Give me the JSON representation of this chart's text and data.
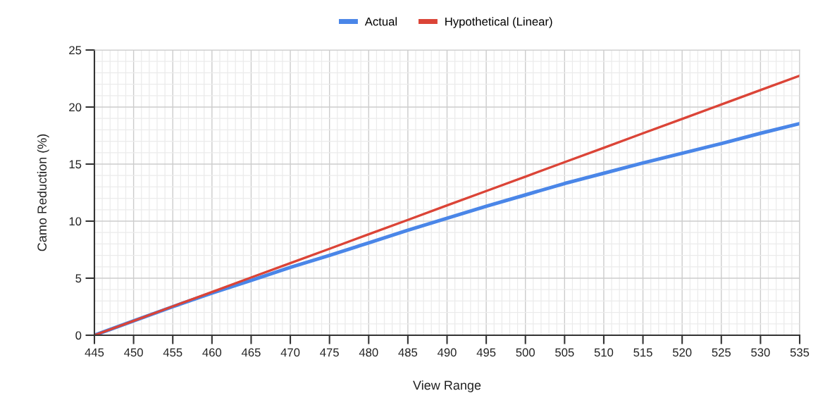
{
  "chart_data": {
    "type": "line",
    "xlabel": "View Range",
    "ylabel": "Camo Reduction (%)",
    "x": [
      445,
      450,
      455,
      460,
      465,
      470,
      475,
      480,
      485,
      490,
      495,
      500,
      505,
      510,
      515,
      520,
      525,
      530,
      535
    ],
    "series": [
      {
        "name": "Actual",
        "color": "#4a86e8",
        "values": [
          0,
          1.26,
          2.5,
          3.7,
          4.8,
          5.95,
          7.0,
          8.1,
          9.2,
          10.25,
          11.3,
          12.3,
          13.3,
          14.2,
          15.1,
          15.95,
          16.8,
          17.7,
          18.55
        ]
      },
      {
        "name": "Hypothetical (Linear)",
        "color": "#db4437",
        "values": [
          0,
          1.26,
          2.53,
          3.79,
          5.06,
          6.32,
          7.58,
          8.85,
          10.11,
          11.38,
          12.64,
          13.9,
          15.17,
          16.43,
          17.7,
          18.96,
          20.22,
          21.49,
          22.75
        ]
      }
    ],
    "xlim": [
      445,
      535
    ],
    "xticks": [
      445,
      450,
      455,
      460,
      465,
      470,
      475,
      480,
      485,
      490,
      495,
      500,
      505,
      510,
      515,
      520,
      525,
      530,
      535
    ],
    "ylim": [
      0,
      25
    ],
    "yticks": [
      0,
      5,
      10,
      15,
      20,
      25
    ],
    "grid": true,
    "legend": "top",
    "marker": "none",
    "line_style": "solid"
  }
}
